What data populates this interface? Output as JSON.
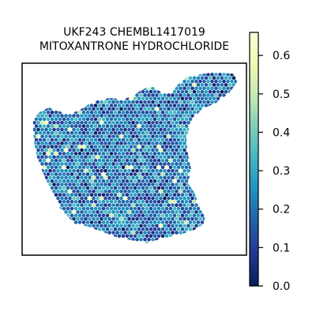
{
  "chart_data": {
    "type": "scatter",
    "subtype": "spatial-hexbin",
    "title_lines": [
      "UKF243 CHEMBL1417019",
      "MITOXANTRONE HYDROCHLORIDE"
    ],
    "colorbar": {
      "colormap": "YlGnBu",
      "range": [
        0.0,
        0.66
      ],
      "ticks": [
        0.0,
        0.1,
        0.2,
        0.3,
        0.4,
        0.5,
        0.6
      ],
      "tick_labels": [
        "0.0",
        "0.1",
        "0.2",
        "0.3",
        "0.4",
        "0.5",
        "0.6"
      ]
    },
    "value_summary": {
      "min": 0.0,
      "max": 0.66,
      "typical": 0.2
    },
    "axes": {
      "x_ticks": [],
      "y_ticks": [],
      "grid": false
    },
    "colors": {
      "cmap_stops": [
        "#081d58",
        "#253494",
        "#225ea8",
        "#1d91c0",
        "#41b6c4",
        "#7fcdbb",
        "#c7e9b4",
        "#edf8b1",
        "#ffffd9"
      ]
    }
  }
}
